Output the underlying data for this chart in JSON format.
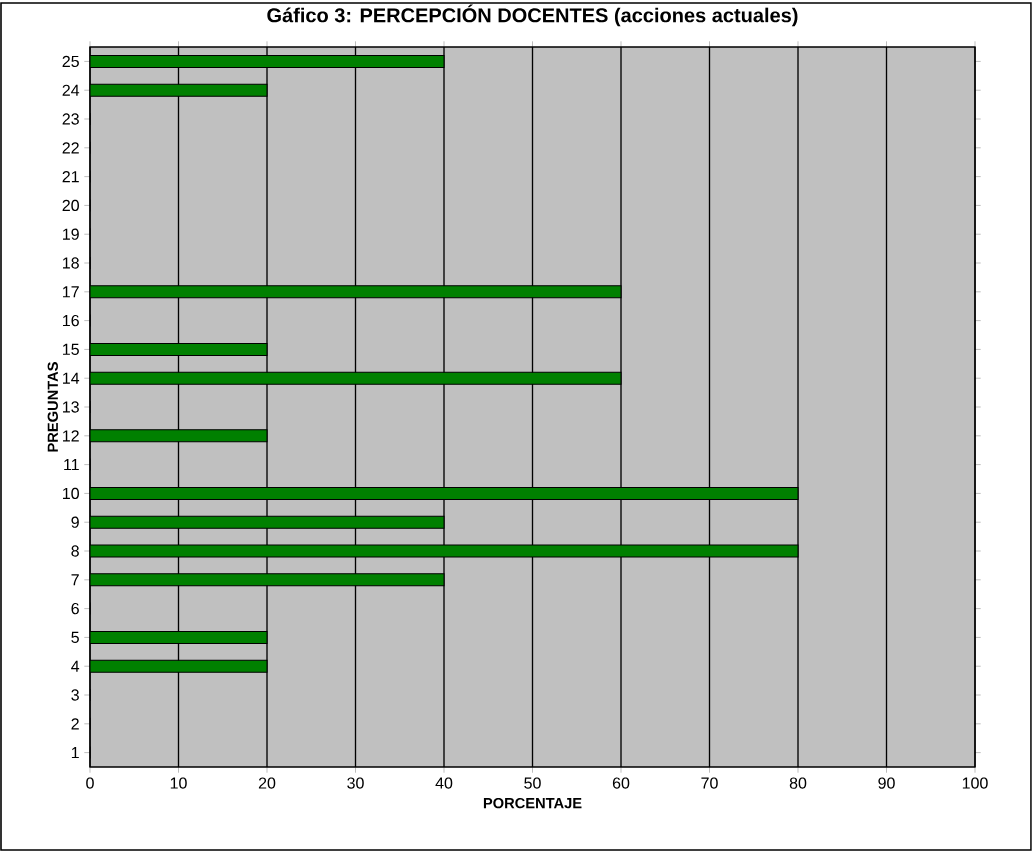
{
  "chart_data": {
    "type": "bar",
    "orientation": "horizontal",
    "title": "Gáfico 3: PERCEPCIÓN DOCENTES (acciones actuales)",
    "xlabel": "PORCENTAJE",
    "ylabel": "PREGUNTAS",
    "categories": [
      "25",
      "24",
      "23",
      "22",
      "21",
      "20",
      "19",
      "18",
      "17",
      "16",
      "15",
      "14",
      "13",
      "12",
      "11",
      "10",
      "9",
      "8",
      "7",
      "6",
      "5",
      "4",
      "3",
      "2",
      "1"
    ],
    "values": [
      40,
      20,
      0,
      0,
      0,
      0,
      0,
      0,
      60,
      0,
      20,
      60,
      0,
      20,
      0,
      80,
      40,
      80,
      40,
      0,
      20,
      20,
      0,
      0,
      0
    ],
    "color": "#008000",
    "xlim": [
      0,
      100
    ],
    "xticks": [
      0,
      10,
      20,
      30,
      40,
      50,
      60,
      70,
      80,
      90,
      100
    ],
    "grid": "x"
  }
}
